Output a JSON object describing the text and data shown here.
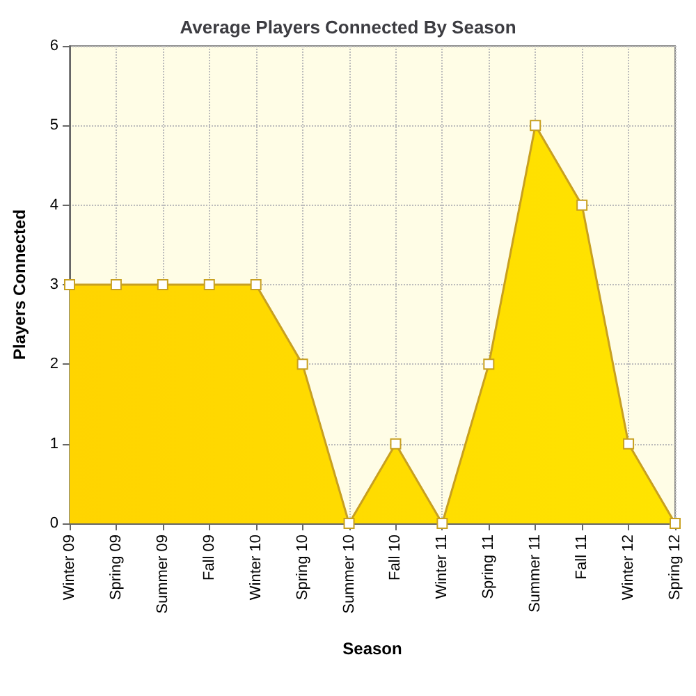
{
  "chart_data": {
    "type": "area",
    "title": "Average Players Connected By Season",
    "xlabel": "Season",
    "ylabel": "Players Connected",
    "categories": [
      "Winter 09",
      "Spring 09",
      "Summer 09",
      "Fall 09",
      "Winter 10",
      "Spring 10",
      "Summer 10",
      "Fall 10",
      "Winter 11",
      "Spring 11",
      "Summer 11",
      "Fall 11",
      "Winter 12",
      "Spring 12"
    ],
    "series": [
      {
        "color": "#ffe400",
        "values": [
          3,
          3,
          3,
          3,
          3,
          2,
          0,
          1,
          0,
          2,
          5,
          4,
          1,
          0
        ]
      }
    ],
    "ylim": [
      0,
      6
    ],
    "yticks": [
      0,
      1,
      2,
      3,
      4,
      5,
      6
    ],
    "grid": true,
    "marker": "square",
    "line_style": "solid"
  }
}
